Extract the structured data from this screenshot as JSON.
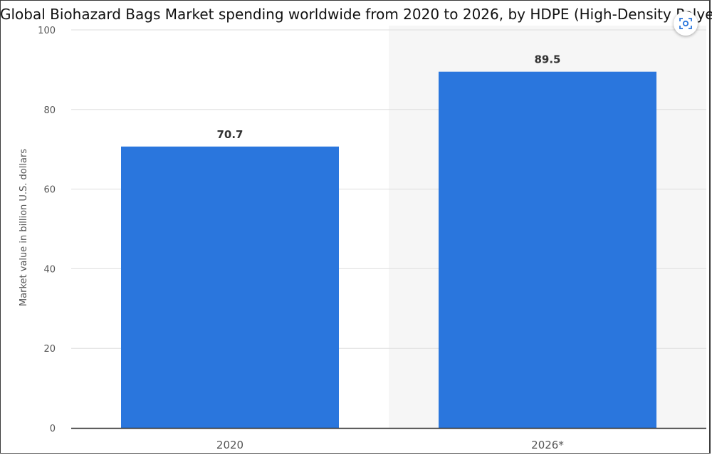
{
  "chart_data": {
    "type": "bar",
    "title": "Global Biohazard Bags Market spending worldwide from 2020 to 2026, by HDPE (High-Density Polyethylene)",
    "categories": [
      "2020",
      "2026*"
    ],
    "values": [
      70.7,
      89.5
    ],
    "value_labels": [
      "70.7",
      "89.5"
    ],
    "ylabel": "Market value in billion U.S. dollars",
    "xlabel": "",
    "ylim": [
      0,
      100
    ],
    "yticks": [
      "0",
      "20",
      "40",
      "60",
      "80",
      "100"
    ],
    "grid": true,
    "legend": "none",
    "highlight_category": "2026*"
  },
  "colors": {
    "bar": "#2a76dd",
    "highlight_band": "#f6f6f6",
    "grid": "#dedede",
    "axis": "#333333",
    "tick_text": "#555555",
    "value_text": "#333333"
  },
  "icons": {
    "lens": "visual-search-icon"
  }
}
